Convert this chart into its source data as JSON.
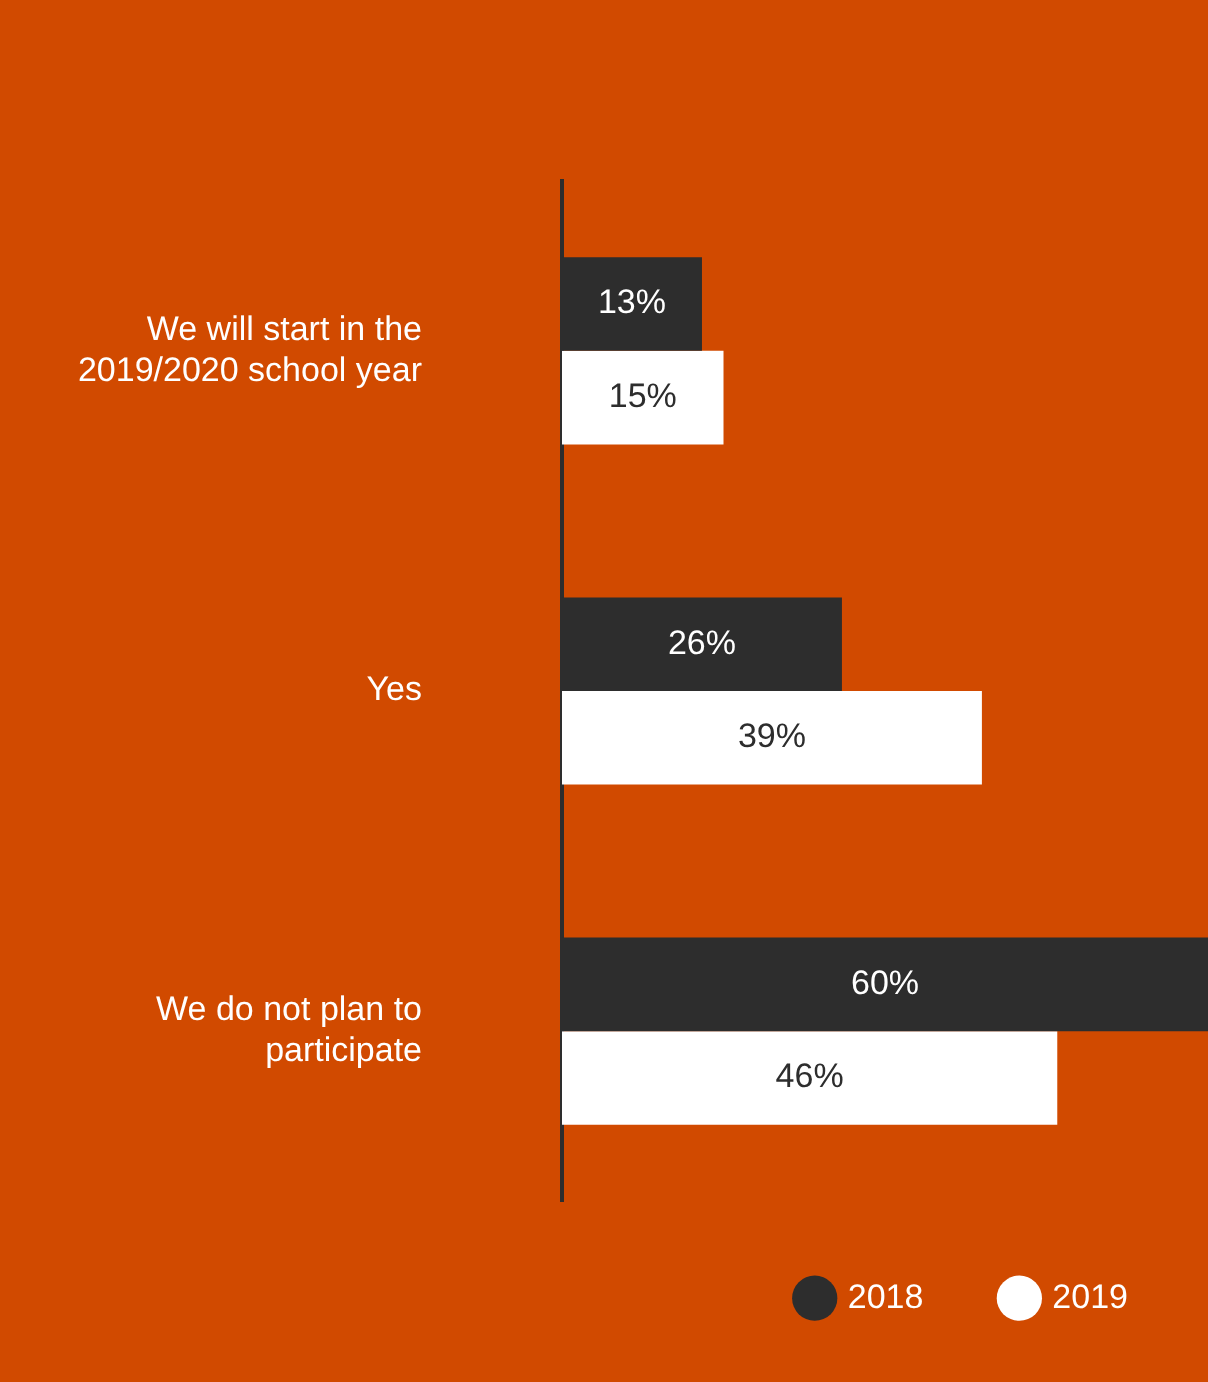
{
  "chart_data": {
    "type": "bar",
    "orientation": "horizontal",
    "categories": [
      "We will start in the 2019/2020 school year",
      "Yes",
      "We do not plan to participate"
    ],
    "series": [
      {
        "name": "2018",
        "color": "#2d2d2d",
        "values": [
          13,
          26,
          60
        ],
        "value_labels": [
          "13%",
          "26%",
          "60%"
        ]
      },
      {
        "name": "2019",
        "color": "#ffffff",
        "values": [
          15,
          39,
          46
        ],
        "value_labels": [
          "15%",
          "39%",
          "46%"
        ]
      }
    ],
    "xlim": [
      0,
      60
    ],
    "tick_labels": "y",
    "grid": false,
    "legend": "bottom right"
  }
}
